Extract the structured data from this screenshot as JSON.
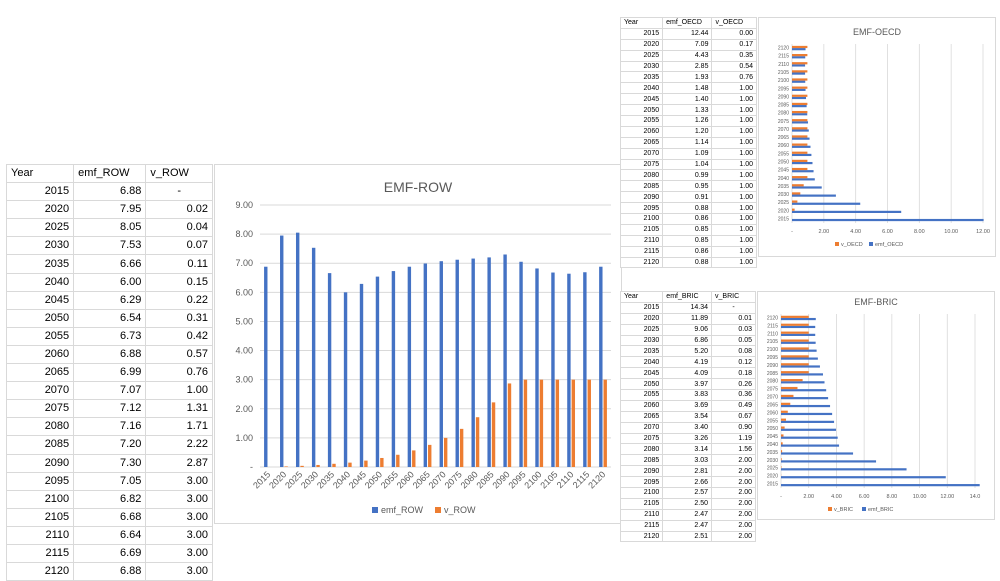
{
  "colors": {
    "emf": "#4472C4",
    "v": "#ED7D31",
    "grid": "#d9d9d9",
    "text": "#595959"
  },
  "tables": {
    "row": {
      "headers": [
        "Year",
        "emf_ROW",
        "v_ROW"
      ],
      "rows": [
        [
          "2015",
          "6.88",
          "-"
        ],
        [
          "2020",
          "7.95",
          "0.02"
        ],
        [
          "2025",
          "8.05",
          "0.04"
        ],
        [
          "2030",
          "7.53",
          "0.07"
        ],
        [
          "2035",
          "6.66",
          "0.11"
        ],
        [
          "2040",
          "6.00",
          "0.15"
        ],
        [
          "2045",
          "6.29",
          "0.22"
        ],
        [
          "2050",
          "6.54",
          "0.31"
        ],
        [
          "2055",
          "6.73",
          "0.42"
        ],
        [
          "2060",
          "6.88",
          "0.57"
        ],
        [
          "2065",
          "6.99",
          "0.76"
        ],
        [
          "2070",
          "7.07",
          "1.00"
        ],
        [
          "2075",
          "7.12",
          "1.31"
        ],
        [
          "2080",
          "7.16",
          "1.71"
        ],
        [
          "2085",
          "7.20",
          "2.22"
        ],
        [
          "2090",
          "7.30",
          "2.87"
        ],
        [
          "2095",
          "7.05",
          "3.00"
        ],
        [
          "2100",
          "6.82",
          "3.00"
        ],
        [
          "2105",
          "6.68",
          "3.00"
        ],
        [
          "2110",
          "6.64",
          "3.00"
        ],
        [
          "2115",
          "6.69",
          "3.00"
        ],
        [
          "2120",
          "6.88",
          "3.00"
        ]
      ]
    },
    "oecd": {
      "headers": [
        "Year",
        "emf_OECD",
        "v_OECD"
      ],
      "rows": [
        [
          "2015",
          "12.44",
          "0.00"
        ],
        [
          "2020",
          "7.09",
          "0.17"
        ],
        [
          "2025",
          "4.43",
          "0.35"
        ],
        [
          "2030",
          "2.85",
          "0.54"
        ],
        [
          "2035",
          "1.93",
          "0.76"
        ],
        [
          "2040",
          "1.48",
          "1.00"
        ],
        [
          "2045",
          "1.40",
          "1.00"
        ],
        [
          "2050",
          "1.33",
          "1.00"
        ],
        [
          "2055",
          "1.26",
          "1.00"
        ],
        [
          "2060",
          "1.20",
          "1.00"
        ],
        [
          "2065",
          "1.14",
          "1.00"
        ],
        [
          "2070",
          "1.09",
          "1.00"
        ],
        [
          "2075",
          "1.04",
          "1.00"
        ],
        [
          "2080",
          "0.99",
          "1.00"
        ],
        [
          "2085",
          "0.95",
          "1.00"
        ],
        [
          "2090",
          "0.91",
          "1.00"
        ],
        [
          "2095",
          "0.88",
          "1.00"
        ],
        [
          "2100",
          "0.86",
          "1.00"
        ],
        [
          "2105",
          "0.85",
          "1.00"
        ],
        [
          "2110",
          "0.85",
          "1.00"
        ],
        [
          "2115",
          "0.86",
          "1.00"
        ],
        [
          "2120",
          "0.88",
          "1.00"
        ]
      ]
    },
    "bric": {
      "headers": [
        "Year",
        "emf_BRIC",
        "v_BRIC"
      ],
      "rows": [
        [
          "2015",
          "14.34",
          "-"
        ],
        [
          "2020",
          "11.89",
          "0.01"
        ],
        [
          "2025",
          "9.06",
          "0.03"
        ],
        [
          "2030",
          "6.86",
          "0.05"
        ],
        [
          "2035",
          "5.20",
          "0.08"
        ],
        [
          "2040",
          "4.19",
          "0.12"
        ],
        [
          "2045",
          "4.09",
          "0.18"
        ],
        [
          "2050",
          "3.97",
          "0.26"
        ],
        [
          "2055",
          "3.83",
          "0.36"
        ],
        [
          "2060",
          "3.69",
          "0.49"
        ],
        [
          "2065",
          "3.54",
          "0.67"
        ],
        [
          "2070",
          "3.40",
          "0.90"
        ],
        [
          "2075",
          "3.26",
          "1.19"
        ],
        [
          "2080",
          "3.14",
          "1.56"
        ],
        [
          "2085",
          "3.03",
          "2.00"
        ],
        [
          "2090",
          "2.81",
          "2.00"
        ],
        [
          "2095",
          "2.66",
          "2.00"
        ],
        [
          "2100",
          "2.57",
          "2.00"
        ],
        [
          "2105",
          "2.50",
          "2.00"
        ],
        [
          "2110",
          "2.47",
          "2.00"
        ],
        [
          "2115",
          "2.47",
          "2.00"
        ],
        [
          "2120",
          "2.51",
          "2.00"
        ]
      ]
    }
  },
  "chart_data": [
    {
      "type": "bar",
      "orientation": "vertical",
      "title": "EMF-ROW",
      "categories": [
        "2015",
        "2020",
        "2025",
        "2030",
        "2035",
        "2040",
        "2045",
        "2050",
        "2055",
        "2060",
        "2065",
        "2070",
        "2075",
        "2080",
        "2085",
        "2090",
        "2095",
        "2100",
        "2105",
        "2110",
        "2115",
        "2120"
      ],
      "series": [
        {
          "name": "emf_ROW",
          "values": [
            6.88,
            7.95,
            8.05,
            7.53,
            6.66,
            6.0,
            6.29,
            6.54,
            6.73,
            6.88,
            6.99,
            7.07,
            7.12,
            7.16,
            7.2,
            7.3,
            7.05,
            6.82,
            6.68,
            6.64,
            6.69,
            6.88
          ]
        },
        {
          "name": "v_ROW",
          "values": [
            0,
            0.02,
            0.04,
            0.07,
            0.11,
            0.15,
            0.22,
            0.31,
            0.42,
            0.57,
            0.76,
            1.0,
            1.31,
            1.71,
            2.22,
            2.87,
            3.0,
            3.0,
            3.0,
            3.0,
            3.0,
            3.0
          ]
        }
      ],
      "ylim": [
        0,
        9
      ],
      "yticks": [
        "-",
        "1.00",
        "2.00",
        "3.00",
        "4.00",
        "5.00",
        "6.00",
        "7.00",
        "8.00",
        "9.00"
      ],
      "grid": true,
      "legend": "bottom"
    },
    {
      "type": "bar",
      "orientation": "horizontal",
      "title": "EMF-OECD",
      "categories": [
        "2015",
        "2020",
        "2025",
        "2030",
        "2035",
        "2040",
        "2045",
        "2050",
        "2055",
        "2060",
        "2065",
        "2070",
        "2075",
        "2080",
        "2085",
        "2090",
        "2095",
        "2100",
        "2105",
        "2110",
        "2115",
        "2120"
      ],
      "series": [
        {
          "name": "v_OECD",
          "values": [
            0.0,
            0.17,
            0.35,
            0.54,
            0.76,
            1.0,
            1.0,
            1.0,
            1.0,
            1.0,
            1.0,
            1.0,
            1.0,
            1.0,
            1.0,
            1.0,
            1.0,
            1.0,
            1.0,
            1.0,
            1.0,
            1.0
          ]
        },
        {
          "name": "emf_OECD",
          "values": [
            12.44,
            7.09,
            4.43,
            2.85,
            1.93,
            1.48,
            1.4,
            1.33,
            1.26,
            1.2,
            1.14,
            1.09,
            1.04,
            0.99,
            0.95,
            0.91,
            0.88,
            0.86,
            0.85,
            0.85,
            0.86,
            0.88
          ]
        }
      ],
      "xlim": [
        0,
        12.4
      ],
      "xticks": [
        "-",
        "2.00",
        "4.00",
        "6.00",
        "8.00",
        "10.00",
        "12.00"
      ],
      "grid": true,
      "legend": "bottom"
    },
    {
      "type": "bar",
      "orientation": "horizontal",
      "title": "EMF-BRIC",
      "categories": [
        "2015",
        "2020",
        "2025",
        "2030",
        "2035",
        "2040",
        "2045",
        "2050",
        "2055",
        "2060",
        "2065",
        "2070",
        "2075",
        "2080",
        "2085",
        "2090",
        "2095",
        "2100",
        "2105",
        "2110",
        "2115",
        "2120"
      ],
      "series": [
        {
          "name": "v_BRIC",
          "values": [
            0,
            0.01,
            0.03,
            0.05,
            0.08,
            0.12,
            0.18,
            0.26,
            0.36,
            0.49,
            0.67,
            0.9,
            1.19,
            1.56,
            2.0,
            2.0,
            2.0,
            2.0,
            2.0,
            2.0,
            2.0,
            2.0
          ]
        },
        {
          "name": "emf_BRIC",
          "values": [
            14.34,
            11.89,
            9.06,
            6.86,
            5.2,
            4.19,
            4.09,
            3.97,
            3.83,
            3.69,
            3.54,
            3.4,
            3.26,
            3.14,
            3.03,
            2.81,
            2.66,
            2.57,
            2.5,
            2.47,
            2.47,
            2.51
          ]
        }
      ],
      "xlim": [
        0,
        14
      ],
      "xticks": [
        "-",
        "2.00",
        "4.00",
        "6.00",
        "8.00",
        "10.00",
        "12.00",
        "14.0"
      ],
      "grid": true,
      "legend": "bottom"
    }
  ]
}
